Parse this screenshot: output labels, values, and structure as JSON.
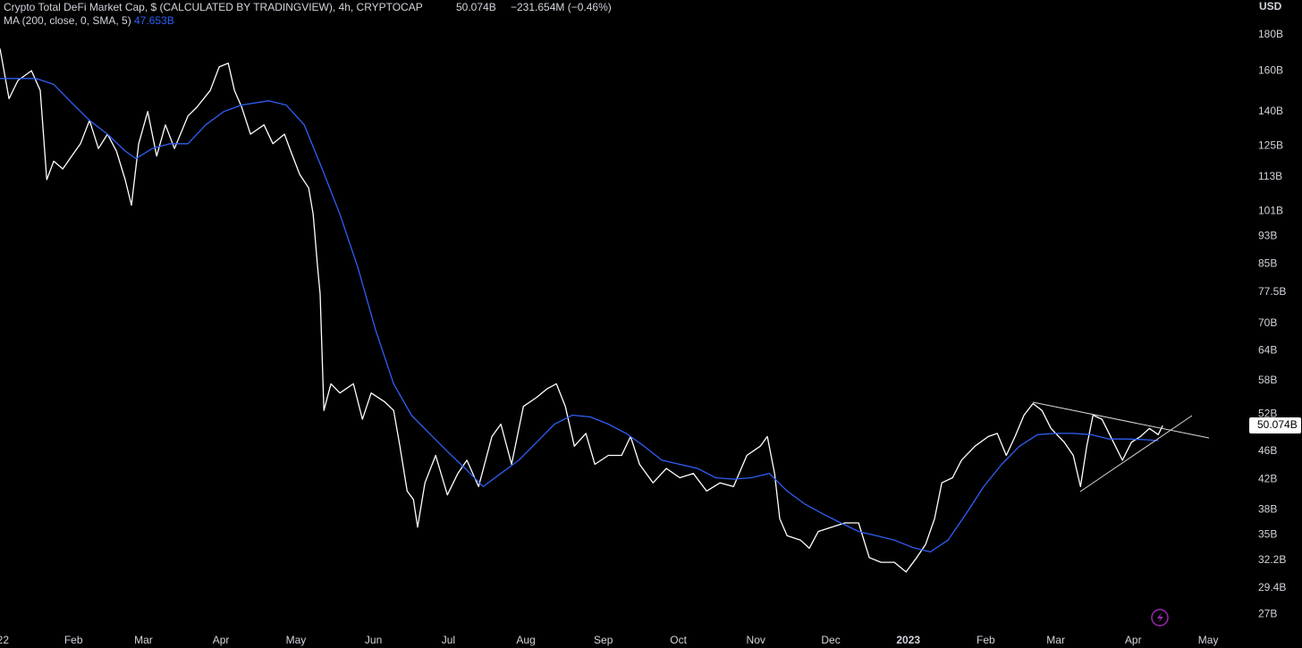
{
  "chart_data": {
    "type": "line",
    "title": "Crypto Total DeFi Market Cap, $ (CALCULATED BY TRADINGVIEW), 4h, CRYPTOCAP",
    "last_price": "50.074B",
    "change": "−231.654M (−0.46%)",
    "indicator": "MA (200, close, 0, SMA, 5)",
    "indicator_value": "47.653B",
    "y_axis_label": "USD",
    "price_label": "50.074B",
    "ylog": true,
    "grid": false,
    "xlim": [
      1.6,
      500.7
    ],
    "ylim": [
      26,
      201.7
    ],
    "xticks": [
      {
        "value": 0,
        "label": "22"
      },
      {
        "value": 31,
        "label": "Feb"
      },
      {
        "value": 59,
        "label": "Mar"
      },
      {
        "value": 90,
        "label": "Apr"
      },
      {
        "value": 120,
        "label": "May"
      },
      {
        "value": 151,
        "label": "Jun"
      },
      {
        "value": 181,
        "label": "Jul"
      },
      {
        "value": 212,
        "label": "Aug"
      },
      {
        "value": 243,
        "label": "Sep"
      },
      {
        "value": 273,
        "label": "Oct"
      },
      {
        "value": 304,
        "label": "Nov"
      },
      {
        "value": 334,
        "label": "Dec"
      },
      {
        "value": 365,
        "label": "2023"
      },
      {
        "value": 396,
        "label": "Feb"
      },
      {
        "value": 424,
        "label": "Mar"
      },
      {
        "value": 455,
        "label": "Apr"
      },
      {
        "value": 485,
        "label": "May"
      }
    ],
    "yticks": [
      {
        "value": 180,
        "label": "180B"
      },
      {
        "value": 160,
        "label": "160B"
      },
      {
        "value": 140,
        "label": "140B"
      },
      {
        "value": 125,
        "label": "125B"
      },
      {
        "value": 113,
        "label": "113B"
      },
      {
        "value": 101,
        "label": "101B"
      },
      {
        "value": 93,
        "label": "93B"
      },
      {
        "value": 85,
        "label": "85B"
      },
      {
        "value": 77.5,
        "label": "77.5B"
      },
      {
        "value": 70,
        "label": "70B"
      },
      {
        "value": 64,
        "label": "64B"
      },
      {
        "value": 58,
        "label": "58B"
      },
      {
        "value": 52,
        "label": "52B"
      },
      {
        "value": 46,
        "label": "46B"
      },
      {
        "value": 42,
        "label": "42B"
      },
      {
        "value": 38,
        "label": "38B"
      },
      {
        "value": 35,
        "label": "35B"
      },
      {
        "value": 32.2,
        "label": "32.2B"
      },
      {
        "value": 29.4,
        "label": "29.4B"
      },
      {
        "value": 27,
        "label": "27B"
      }
    ],
    "series": [
      {
        "color": "#ffffff",
        "x": [
          1.6,
          5.2,
          8.8,
          14.2,
          17.7,
          20.3,
          23.1,
          26.7,
          30.3,
          33.8,
          37.4,
          41.0,
          44.6,
          48.2,
          51.7,
          54.2,
          57.1,
          60.7,
          64.3,
          67.8,
          71.4,
          76.8,
          80.4,
          85.7,
          89.3,
          92.9,
          95.4,
          98.3,
          101.8,
          107.2,
          110.8,
          115.4,
          117.9,
          121.5,
          125.1,
          126.9,
          128.7,
          129.7,
          131.2,
          134.0,
          137.6,
          143.0,
          146.6,
          150.1,
          155.5,
          159.1,
          161.6,
          164.5,
          167.0,
          168.7,
          171.6,
          175.9,
          180.6,
          184.8,
          188.4,
          193.1,
          198.4,
          202.0,
          206.3,
          211.0,
          216.3,
          220.6,
          224.2,
          227.8,
          231.4,
          236.0,
          239.6,
          245.0,
          250.3,
          253.9,
          257.5,
          262.9,
          268.2,
          273.6,
          279.0,
          284.3,
          289.7,
          295.1,
          300.4,
          305.8,
          308.6,
          311.5,
          313.6,
          316.5,
          321.9,
          325.4,
          329.0,
          334.4,
          339.7,
          345.1,
          349.4,
          354.1,
          359.4,
          364.1,
          368.4,
          371.9,
          375.5,
          378.4,
          382.7,
          386.3,
          391.7,
          397.0,
          400.6,
          404.2,
          407.7,
          411.3,
          414.9,
          418.5,
          422.1,
          427.4,
          431.0,
          433.9,
          436.4,
          438.9,
          442.5,
          447.1,
          450.7,
          454.3,
          457.9,
          461.5,
          465.0,
          466.8
        ],
        "values": [
          172,
          146,
          155,
          160,
          150,
          112,
          119,
          116,
          121,
          126,
          136,
          124,
          130,
          123,
          112,
          103,
          126,
          140,
          121,
          134,
          124,
          138,
          142,
          150,
          162,
          164,
          150,
          142,
          130,
          134,
          126,
          130,
          123,
          114,
          109,
          100,
          84,
          77,
          52.6,
          57.4,
          55.7,
          57.4,
          51.1,
          55.7,
          54.1,
          52.6,
          46.8,
          40.4,
          39.3,
          35.9,
          41.5,
          45.4,
          39.9,
          42.8,
          44.7,
          41.0,
          48.3,
          50.3,
          44.1,
          53.3,
          54.9,
          56.5,
          57.4,
          53.3,
          46.8,
          48.8,
          44.1,
          45.4,
          45.4,
          48.3,
          44.1,
          41.5,
          43.5,
          42.2,
          42.8,
          40.4,
          41.5,
          41.0,
          45.4,
          46.8,
          48.3,
          42.8,
          36.9,
          34.9,
          34.4,
          33.5,
          35.4,
          35.9,
          36.4,
          36.4,
          32.5,
          32.0,
          32.0,
          31.0,
          32.5,
          33.9,
          36.9,
          41.5,
          42.2,
          44.7,
          46.8,
          48.3,
          48.8,
          45.4,
          48.3,
          51.8,
          53.8,
          52.6,
          49.6,
          47.4,
          45.4,
          41.0,
          46.8,
          51.8,
          51.1,
          47.4,
          44.7,
          47.4,
          48.3,
          49.6,
          48.6,
          50.074
        ]
      },
      {
        "color": "#2f5ff5",
        "x": [
          1.6,
          16.0,
          23.1,
          30.3,
          37.4,
          44.6,
          51.7,
          56.0,
          62.5,
          69.6,
          76.8,
          83.9,
          91.1,
          98.3,
          109.0,
          116.1,
          123.3,
          130.5,
          137.6,
          144.8,
          151.9,
          159.1,
          166.2,
          173.4,
          180.6,
          187.7,
          194.9,
          202.0,
          209.2,
          216.3,
          223.5,
          230.6,
          237.8,
          245.0,
          252.1,
          259.3,
          266.4,
          273.6,
          280.7,
          287.9,
          295.1,
          302.2,
          309.4,
          316.5,
          323.7,
          330.8,
          338.0,
          345.1,
          352.3,
          359.4,
          366.6,
          373.8,
          380.9,
          388.1,
          395.2,
          402.4,
          409.5,
          416.7,
          423.8,
          431.0,
          438.2,
          445.3,
          452.5,
          459.6,
          465.0
        ],
        "values": [
          156,
          156,
          153,
          144,
          136,
          130,
          123,
          120,
          124,
          126,
          126,
          134,
          140,
          143,
          145,
          143,
          134,
          116,
          100,
          84,
          68.4,
          57.4,
          51.8,
          48.8,
          46.0,
          43.5,
          41.0,
          42.8,
          44.7,
          47.4,
          50.3,
          51.8,
          51.5,
          50.3,
          48.8,
          46.8,
          44.7,
          44.1,
          43.5,
          42.2,
          42.0,
          42.2,
          42.8,
          40.4,
          38.7,
          37.5,
          36.4,
          35.4,
          34.9,
          34.4,
          33.6,
          33.1,
          34.4,
          37.5,
          41.0,
          44.1,
          46.8,
          48.6,
          48.8,
          48.8,
          48.6,
          47.9,
          47.9,
          47.8,
          47.653
        ]
      }
    ]
  }
}
